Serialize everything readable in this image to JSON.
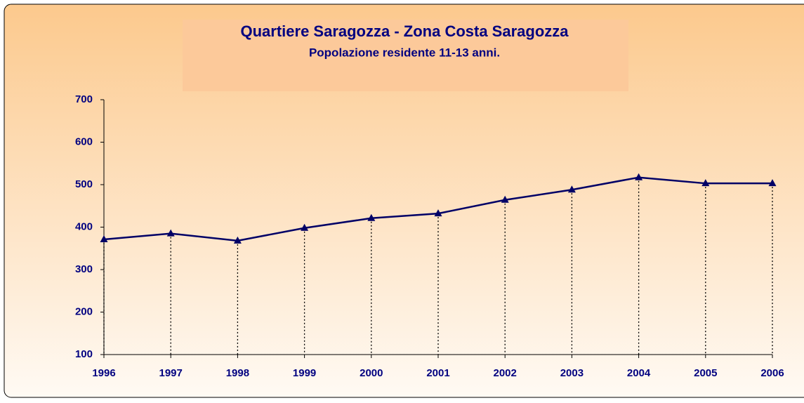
{
  "chart_data": {
    "type": "line",
    "title": "Quartiere Saragozza - Zona Costa Saragozza",
    "subtitle": "Popolazione residente 11-13 anni.",
    "categories": [
      "1996",
      "1997",
      "1998",
      "1999",
      "2000",
      "2001",
      "2002",
      "2003",
      "2004",
      "2005",
      "2006"
    ],
    "series": [
      {
        "name": "Popolazione",
        "color": "#000066",
        "values": [
          371,
          385,
          368,
          398,
          421,
          432,
          464,
          488,
          517,
          503,
          503
        ]
      }
    ],
    "ylim": [
      100,
      700
    ],
    "yticks": [
      100,
      200,
      300,
      400,
      500,
      600,
      700
    ],
    "drop_lines": true
  }
}
